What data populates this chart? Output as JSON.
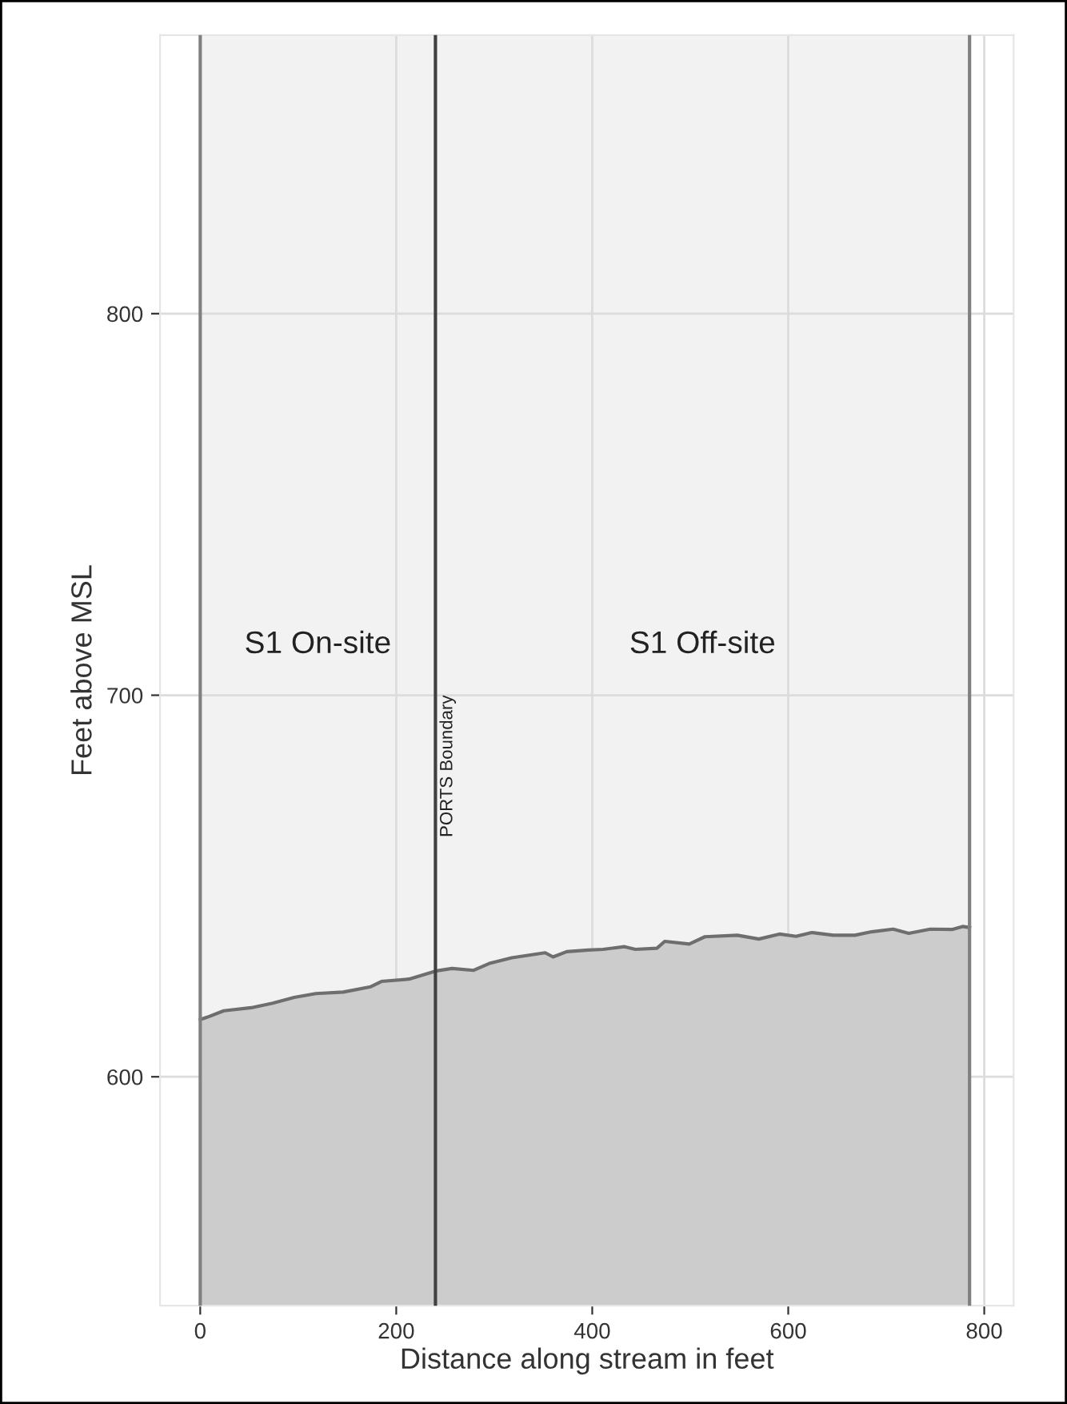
{
  "chart_data": {
    "type": "area",
    "xlabel": "Distance along stream in feet",
    "ylabel": "Feet above MSL",
    "x": [
      0,
      7,
      24,
      52,
      74,
      96,
      118,
      146,
      174,
      185,
      213,
      240,
      257,
      279,
      296,
      318,
      352,
      360,
      374,
      396,
      411,
      433,
      444,
      466,
      474,
      499,
      515,
      548,
      570,
      591,
      608,
      624,
      646,
      668,
      685,
      707,
      723,
      745,
      767,
      778,
      785
    ],
    "series": [
      {
        "color": "#cccccc",
        "values": [
          615,
          615.6,
          617.3,
          618.1,
          619.3,
          620.8,
          621.8,
          622.2,
          623.6,
          625,
          625.6,
          627.7,
          628.4,
          627.9,
          629.8,
          631.2,
          632.5,
          631.4,
          632.8,
          633.2,
          633.4,
          634.1,
          633.4,
          633.7,
          635.5,
          634.8,
          636.7,
          637.1,
          636.1,
          637.4,
          636.8,
          637.8,
          637.1,
          637.1,
          638,
          638.7,
          637.6,
          638.7,
          638.6,
          639.4,
          639.1
        ]
      }
    ],
    "xlim": [
      -41,
      830
    ],
    "ylim": [
      540,
      873
    ],
    "xticks": [
      0,
      200,
      400,
      600,
      800
    ],
    "yticks": [
      600,
      700,
      800
    ],
    "grid": true,
    "legend": false,
    "bands": [
      {
        "axis": "x",
        "from": 0,
        "to": 785,
        "color": "#f2f2f2"
      }
    ],
    "ref_lines": [
      {
        "axis": "x",
        "value": 0,
        "color": "#808080"
      },
      {
        "axis": "x",
        "value": 240,
        "label": "PORTS Boundary",
        "color": "#404040"
      },
      {
        "axis": "x",
        "value": 785,
        "color": "#808080"
      }
    ],
    "annotations": [
      "S1 On-site",
      "S1 Off-site"
    ]
  }
}
